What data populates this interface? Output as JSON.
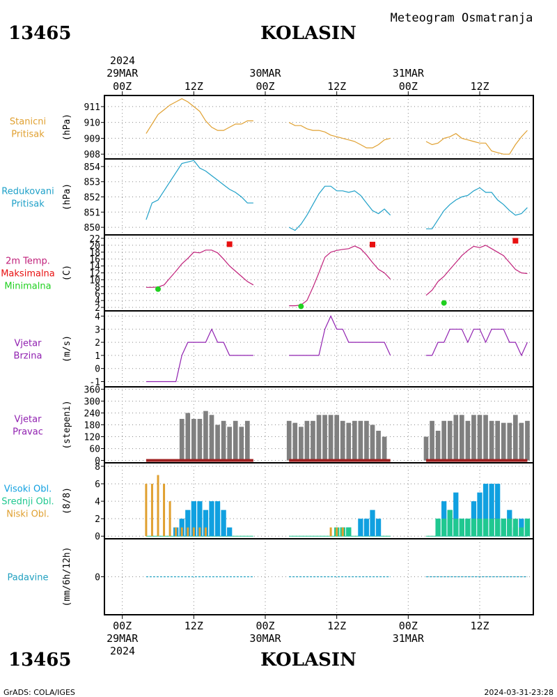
{
  "header": {
    "station_id": "13465",
    "station_name": "KOLASIN",
    "title": "Meteogram Osmatranja"
  },
  "footer": {
    "station_id": "13465",
    "station_name": "KOLASIN",
    "credit": "GrADS: COLA/IGES",
    "timestamp": "2024-03-31-23:28"
  },
  "time_axis": {
    "top_year": "2024",
    "bottom_year": "2024",
    "ticks": [
      {
        "hour": 0,
        "label": "00Z",
        "date": "29MAR"
      },
      {
        "hour": 12,
        "label": "12Z",
        "date": ""
      },
      {
        "hour": 24,
        "label": "00Z",
        "date": "30MAR"
      },
      {
        "hour": 36,
        "label": "12Z",
        "date": ""
      },
      {
        "hour": 48,
        "label": "00Z",
        "date": "31MAR"
      },
      {
        "hour": 60,
        "label": "12Z",
        "date": ""
      }
    ],
    "range_hours": [
      -3,
      69
    ]
  },
  "colors": {
    "pressure_station": "#e0a030",
    "pressure_reduced": "#1ea0c8",
    "temperature": "#c0207a",
    "tmax": "#e81010",
    "tmin": "#20d020",
    "wind": "#9020b0",
    "wind_dir": "#808080",
    "wind_dir_base": "#a02020",
    "cloud_high": "#10a0e0",
    "cloud_mid": "#20c890",
    "cloud_low": "#e0a030",
    "precip": "#20a0c0"
  },
  "chart_data": [
    {
      "type": "line",
      "id": "station_pressure",
      "labels": [
        "Stanicni",
        "Pritisak"
      ],
      "ylabel": "(hPa)",
      "ylim": [
        907.7,
        911.7
      ],
      "yticks": [
        908,
        909,
        910,
        911
      ],
      "series": [
        {
          "x": [
            4,
            5,
            6,
            7,
            8,
            9,
            10,
            11,
            12,
            13,
            14,
            15,
            16,
            17,
            18,
            19,
            20
          ],
          "y": [
            909.3,
            909.9,
            910.5,
            910.8,
            911.1,
            911.3,
            911.5,
            911.3,
            911.0,
            910.7,
            910.1,
            909.7,
            909.5,
            909.5,
            909.7,
            909.9,
            909.9
          ]
        },
        {
          "x": [
            20,
            21,
            22
          ],
          "y": [
            909.9,
            910.1,
            910.1
          ]
        },
        {
          "x": [
            28,
            29,
            30,
            31,
            32,
            33,
            34,
            35,
            36,
            37,
            38,
            39,
            40,
            41,
            42,
            43,
            44,
            45
          ],
          "y": [
            910.0,
            909.8,
            909.8,
            909.6,
            909.5,
            909.5,
            909.4,
            909.2,
            909.1,
            909.0,
            908.9,
            908.8,
            908.6,
            908.4,
            908.4,
            908.6,
            908.9,
            909.0
          ]
        },
        {
          "x": [
            51,
            52,
            53,
            54,
            55,
            56,
            57,
            58,
            59,
            60,
            61,
            62,
            63,
            64,
            65,
            66,
            67,
            68
          ],
          "y": [
            908.8,
            908.6,
            908.7,
            909.0,
            909.1,
            909.3,
            909.0,
            908.9,
            908.8,
            908.7,
            908.7,
            908.2,
            908.1,
            908.0,
            908.0,
            908.6,
            909.1,
            909.5
          ]
        }
      ]
    },
    {
      "type": "line",
      "id": "reduced_pressure",
      "labels": [
        "Redukovani",
        "Pritisak"
      ],
      "ylabel": "(hPa)",
      "ylim": [
        849.5,
        854.5
      ],
      "yticks": [
        850,
        851,
        852,
        853,
        854
      ],
      "series": [
        {
          "x": [
            4,
            5,
            6,
            7,
            8,
            9,
            10,
            11,
            12,
            13,
            14,
            15,
            16,
            17,
            18,
            19,
            20,
            21,
            22
          ],
          "y": [
            850.5,
            851.6,
            851.8,
            852.4,
            853.0,
            853.6,
            854.2,
            854.3,
            854.4,
            853.9,
            853.7,
            853.4,
            853.1,
            852.8,
            852.5,
            852.3,
            852.0,
            851.6,
            851.6
          ]
        },
        {
          "x": [
            28,
            29,
            30,
            31,
            32,
            33,
            34,
            35,
            36,
            37,
            38,
            39,
            40,
            41,
            42,
            43,
            44,
            45
          ],
          "y": [
            850.0,
            849.8,
            850.2,
            850.8,
            851.5,
            852.2,
            852.7,
            852.7,
            852.4,
            852.4,
            852.3,
            852.4,
            852.1,
            851.6,
            851.1,
            850.9,
            851.2,
            850.8
          ]
        },
        {
          "x": [
            51,
            52,
            53,
            54,
            55,
            56,
            57,
            58,
            59,
            60,
            61,
            62,
            63,
            64,
            65,
            66,
            67,
            68
          ],
          "y": [
            849.9,
            849.9,
            850.5,
            851.1,
            851.5,
            851.8,
            852.0,
            852.1,
            852.4,
            852.6,
            852.3,
            852.3,
            851.8,
            851.5,
            851.1,
            850.8,
            850.9,
            851.3
          ]
        }
      ]
    },
    {
      "type": "line",
      "id": "temperature",
      "labels": [
        "2m Temp.",
        "Maksimalna",
        "Minimalna"
      ],
      "ylabel": "(C)",
      "ylim": [
        1,
        23
      ],
      "yticks": [
        2,
        4,
        6,
        8,
        10,
        12,
        14,
        16,
        18,
        20,
        22
      ],
      "series": [
        {
          "x": [
            4,
            5,
            6,
            7,
            8,
            9,
            10,
            11,
            12,
            13,
            14,
            15,
            16,
            17,
            18,
            19,
            20,
            21,
            22
          ],
          "y": [
            7.8,
            7.8,
            7.9,
            8.5,
            10.5,
            12.5,
            14.6,
            16.2,
            18.0,
            17.8,
            18.6,
            18.6,
            17.8,
            16.0,
            14.0,
            12.5,
            11.0,
            9.5,
            8.5
          ]
        },
        {
          "x": [
            28,
            29,
            30,
            31,
            32,
            33,
            34,
            35,
            36,
            37,
            38,
            39,
            40,
            41,
            42,
            43,
            44,
            45
          ],
          "y": [
            2.5,
            2.5,
            2.7,
            4.0,
            7.8,
            12.0,
            16.5,
            18.0,
            18.5,
            18.8,
            19.0,
            19.8,
            19.0,
            17.2,
            15.0,
            13.0,
            12.0,
            10.2
          ]
        },
        {
          "x": [
            51,
            52,
            53,
            54,
            55,
            56,
            57,
            58,
            59,
            60,
            61,
            62,
            63,
            64,
            65,
            66,
            67,
            68
          ],
          "y": [
            5.5,
            7.0,
            9.5,
            11.0,
            13.0,
            15.0,
            17.0,
            18.5,
            19.7,
            19.3,
            20.0,
            19.0,
            18.0,
            17.0,
            15.0,
            13.0,
            12.0,
            11.8
          ]
        }
      ],
      "tmax": [
        {
          "x": 18,
          "y": 20.3
        },
        {
          "x": 42,
          "y": 20.2
        },
        {
          "x": 66,
          "y": 21.3
        }
      ],
      "tmin": [
        {
          "x": 6,
          "y": 7.3
        },
        {
          "x": 30,
          "y": 2.3
        },
        {
          "x": 54,
          "y": 3.3
        }
      ]
    },
    {
      "type": "line",
      "id": "wind_speed",
      "labels": [
        "Vjetar",
        "Brzina"
      ],
      "ylabel": "(m/s)",
      "ylim": [
        -1.4,
        4.4
      ],
      "yticks": [
        -1,
        0,
        1,
        2,
        3,
        4
      ],
      "series": [
        {
          "x": [
            4,
            9,
            10,
            11,
            12,
            13,
            14,
            15,
            16,
            17,
            18,
            19,
            20,
            21,
            22
          ],
          "y": [
            -1,
            -1,
            1,
            2,
            2,
            2,
            2,
            3,
            2,
            2,
            1,
            1,
            1,
            1,
            1
          ]
        },
        {
          "x": [
            28,
            32,
            33,
            34,
            35,
            36,
            37,
            38,
            39,
            40,
            41,
            42,
            43,
            44,
            45
          ],
          "y": [
            1,
            1,
            1,
            3,
            4,
            3,
            3,
            2,
            2,
            2,
            2,
            2,
            2,
            2,
            1
          ]
        },
        {
          "x": [
            51,
            52,
            53,
            54,
            55,
            56,
            57,
            58,
            59,
            60,
            61,
            62,
            63,
            64,
            65,
            66,
            67,
            68
          ],
          "y": [
            1,
            1,
            2,
            2,
            3,
            3,
            3,
            2,
            3,
            3,
            2,
            3,
            3,
            3,
            2,
            2,
            1,
            2
          ]
        }
      ]
    },
    {
      "type": "bar",
      "id": "wind_direction",
      "labels": [
        "Vjetar",
        "Pravac"
      ],
      "ylabel": "(stepeni)",
      "ylim": [
        -12,
        372
      ],
      "yticks": [
        0,
        60,
        120,
        180,
        240,
        300,
        360
      ],
      "x": [
        10,
        11,
        12,
        13,
        14,
        15,
        16,
        17,
        18,
        19,
        20,
        21,
        22,
        28,
        29,
        30,
        31,
        32,
        33,
        34,
        35,
        36,
        37,
        38,
        39,
        40,
        41,
        42,
        43,
        44,
        45,
        51,
        52,
        53,
        54,
        55,
        56,
        57,
        58,
        59,
        60,
        61,
        62,
        63,
        64,
        65,
        66,
        67,
        68
      ],
      "values": [
        210,
        240,
        210,
        210,
        250,
        230,
        180,
        200,
        170,
        200,
        170,
        200,
        0,
        200,
        190,
        170,
        200,
        200,
        230,
        230,
        230,
        230,
        200,
        190,
        200,
        200,
        200,
        180,
        150,
        120,
        0,
        120,
        200,
        150,
        200,
        200,
        230,
        230,
        200,
        230,
        230,
        230,
        200,
        200,
        190,
        190,
        230,
        190,
        200
      ],
      "base_range": [
        {
          "from": 4,
          "to": 22
        },
        {
          "from": 28,
          "to": 45
        },
        {
          "from": 51,
          "to": 68
        }
      ]
    },
    {
      "type": "bar",
      "id": "clouds",
      "labels": [
        "Visoki Obl.",
        "Srednji Obl.",
        "Niski Obl."
      ],
      "ylabel": "(8/8)",
      "ylim": [
        -0.3,
        8.4
      ],
      "yticks": [
        0,
        2,
        4,
        6,
        8
      ],
      "series": [
        {
          "name": "Visoki Obl.",
          "x": [
            9,
            10,
            11,
            12,
            13,
            14,
            15,
            16,
            17,
            18,
            19,
            37,
            38,
            39,
            40,
            41,
            42,
            43,
            44,
            45,
            52,
            53,
            54,
            55,
            56,
            57,
            58,
            59,
            60,
            61,
            62,
            63,
            64,
            65,
            66,
            67,
            68
          ],
          "values": [
            1,
            2,
            3,
            4,
            4,
            3,
            4,
            4,
            3,
            1,
            0,
            1,
            1,
            0,
            2,
            2,
            3,
            2,
            0,
            0,
            0,
            2,
            4,
            3,
            5,
            2,
            2,
            4,
            5,
            6,
            6,
            6,
            2,
            3,
            1,
            2,
            2
          ]
        },
        {
          "name": "Srednji Obl.",
          "x": [
            36,
            37,
            38,
            52,
            53,
            54,
            55,
            56,
            57,
            58,
            59,
            60,
            61,
            62,
            63,
            64,
            65,
            66,
            67,
            68
          ],
          "values": [
            1,
            1,
            1,
            0,
            2,
            2,
            3,
            2,
            2,
            2,
            2,
            2,
            2,
            2,
            2,
            2,
            2,
            2,
            1,
            2
          ]
        },
        {
          "name": "Niski Obl.",
          "x": [
            4,
            5,
            6,
            7,
            8,
            9,
            10,
            11,
            12,
            13,
            14,
            15,
            35,
            36,
            37
          ],
          "values": [
            6,
            6,
            7,
            6,
            4,
            1,
            1,
            1,
            1,
            1,
            1,
            0,
            1,
            1,
            1
          ]
        }
      ],
      "base_range": [
        {
          "from": 4,
          "to": 22
        },
        {
          "from": 28,
          "to": 45
        },
        {
          "from": 51,
          "to": 68
        }
      ]
    },
    {
      "type": "line",
      "id": "precipitation",
      "labels": [
        "Padavine"
      ],
      "ylabel": "(mm/6h/12h)",
      "ylim": [
        -2,
        2
      ],
      "yticks": [
        0
      ],
      "series": [
        {
          "x": [
            4,
            22
          ],
          "y": [
            0,
            0
          ]
        },
        {
          "x": [
            28,
            45
          ],
          "y": [
            0,
            0
          ]
        },
        {
          "x": [
            51,
            68
          ],
          "y": [
            0,
            0
          ]
        }
      ]
    }
  ]
}
